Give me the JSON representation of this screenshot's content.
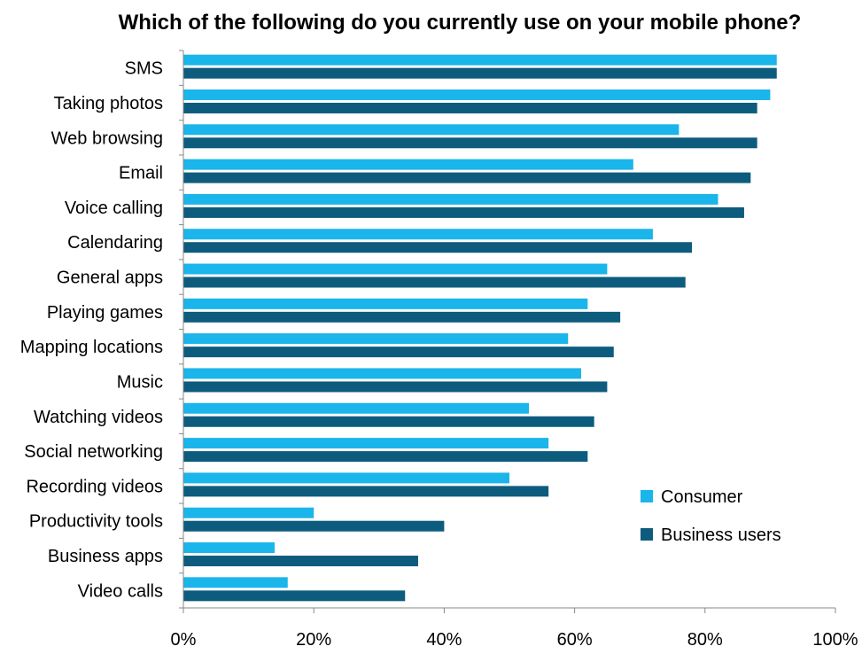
{
  "chart_data": {
    "type": "bar",
    "orientation": "horizontal",
    "title": "Which of the following do you currently use on your mobile phone?",
    "categories": [
      "SMS",
      "Taking photos",
      "Web browsing",
      "Email",
      "Voice calling",
      "Calendaring",
      "General apps",
      "Playing games",
      "Mapping locations",
      "Music",
      "Watching videos",
      "Social networking",
      "Recording videos",
      "Productivity tools",
      "Business apps",
      "Video calls"
    ],
    "series": [
      {
        "name": "Consumer",
        "color": "#1ab5ea",
        "values": [
          91,
          90,
          76,
          69,
          82,
          72,
          65,
          62,
          59,
          61,
          53,
          56,
          50,
          20,
          14,
          16
        ]
      },
      {
        "name": "Business users",
        "color": "#0d5c7e",
        "values": [
          91,
          88,
          88,
          87,
          86,
          78,
          77,
          67,
          66,
          65,
          63,
          62,
          56,
          40,
          36,
          34
        ]
      }
    ],
    "xlim": [
      0,
      100
    ],
    "xticks": [
      "0%",
      "20%",
      "40%",
      "60%",
      "80%",
      "100%"
    ],
    "grid": false,
    "legend_position": "bottom-right"
  }
}
